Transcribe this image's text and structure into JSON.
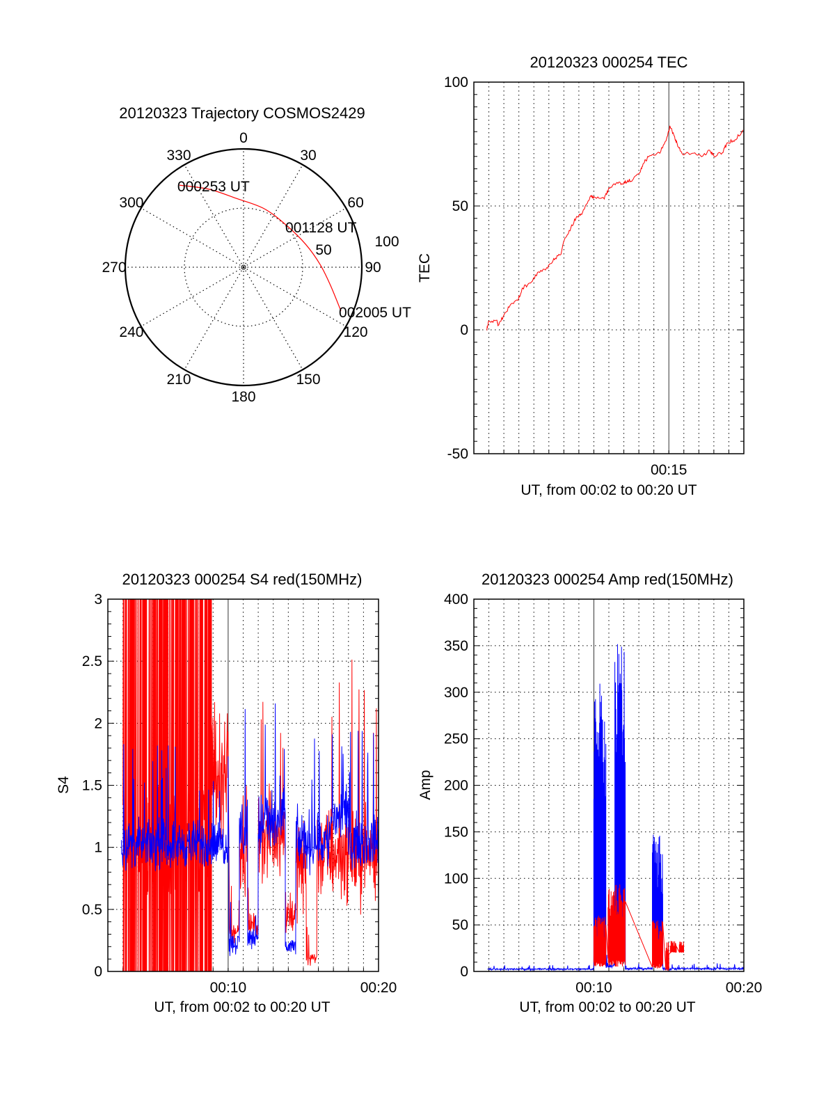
{
  "chart_data": [
    {
      "type": "polar",
      "title": "20120323 Trajectory COSMOS2429",
      "angle_labels": [
        "0",
        "30",
        "60",
        "90",
        "120",
        "150",
        "180",
        "210",
        "240",
        "270",
        "300",
        "330"
      ],
      "radial_ticks": [
        50,
        100
      ],
      "rlim": [
        0,
        100
      ],
      "trajectory": {
        "color": "#ff0000",
        "azimuth_deg": [
          322,
          336,
          354,
          19.7,
          46.9,
          70.4,
          88,
          101.8,
          114.2
        ],
        "radius": [
          88,
          72.2,
          58.5,
          52.4,
          50.8,
          56.2,
          64.8,
          75.1,
          90.3
        ]
      },
      "annotations": [
        {
          "text": "000253 UT",
          "point_index": 0
        },
        {
          "text": "001128 UT",
          "point_index": 4
        },
        {
          "text": "002005 UT",
          "point_index": 8
        }
      ]
    },
    {
      "type": "line",
      "title": "20120323 000254 TEC",
      "xlabel": "UT, from 00:02 to 00:20 UT",
      "ylabel": "TEC",
      "xlim": [
        2,
        20
      ],
      "ylim": [
        -50,
        100
      ],
      "yticks": [
        -50,
        0,
        50,
        100
      ],
      "yminor_step": 5,
      "xticks": [
        {
          "value": 15,
          "label": "00:15"
        }
      ],
      "grid": true,
      "series": [
        {
          "name": "TEC",
          "color": "#ff0000",
          "x": [
            2.85,
            3.0,
            3.54,
            3.62,
            4.0,
            4.47,
            4.93,
            5.24,
            5.78,
            6.31,
            6.93,
            7.32,
            7.78,
            8.01,
            8.47,
            8.86,
            9.24,
            9.75,
            10.0,
            10.7,
            11.0,
            11.48,
            12.0,
            12.25,
            12.56,
            13.1,
            13.33,
            13.63,
            14.4,
            14.87,
            15.07,
            15.36,
            15.56,
            15.87,
            16.56,
            17.26,
            17.72,
            18.0,
            18.57,
            18.87,
            19.41,
            19.95
          ],
          "y": [
            0,
            3.4,
            3.9,
            1.9,
            5.9,
            10.4,
            11.9,
            16.9,
            18.9,
            23.4,
            24.9,
            28.8,
            30.3,
            35.8,
            41.3,
            45.8,
            47.3,
            53.8,
            53.8,
            52.8,
            57.3,
            59.1,
            59.1,
            60.3,
            60.3,
            63.8,
            67.3,
            69.8,
            71.3,
            77.7,
            82.4,
            78.2,
            75.0,
            71.3,
            71.3,
            70.1,
            72.5,
            70.1,
            71.5,
            75.4,
            76.7,
            80.7
          ]
        }
      ]
    },
    {
      "type": "line",
      "title": "20120323 000254 S4 red(150MHz)",
      "xlabel": "UT, from 00:02 to 00:20 UT",
      "ylabel": "S4",
      "xlim": [
        2,
        20
      ],
      "ylim": [
        0,
        3
      ],
      "yticks": [
        0,
        0.5,
        1,
        1.5,
        2,
        2.5,
        3
      ],
      "yminor_step": 0.1,
      "xticks": [
        {
          "value": 10,
          "label": "00:10"
        },
        {
          "value": 20,
          "label": "00:20"
        }
      ],
      "grid": true,
      "series": [
        {
          "name": "S4 red",
          "color": "#ff0000",
          "segments": [
            {
              "t": [
                3.0,
                8.9
              ],
              "range": [
                0,
                3
              ],
              "mode": "saturated"
            },
            {
              "t": [
                8.9,
                10.0
              ],
              "range": [
                0.7,
                2.5
              ],
              "mode": "noise"
            },
            {
              "t": [
                10.1,
                10.75
              ],
              "range": [
                0.2,
                0.45
              ],
              "mode": "noise"
            },
            {
              "t": [
                10.75,
                11.3
              ],
              "range": [
                0.5,
                1.6
              ],
              "mode": "noise"
            },
            {
              "t": [
                11.3,
                12.0
              ],
              "range": [
                0.25,
                0.5
              ],
              "mode": "noise"
            },
            {
              "t": [
                12.0,
                13.8
              ],
              "range": [
                0.6,
                1.6
              ],
              "mode": "noise"
            },
            {
              "t": [
                13.8,
                14.5
              ],
              "range": [
                0.2,
                0.75
              ],
              "mode": "noise"
            },
            {
              "t": [
                14.5,
                15.2
              ],
              "range": [
                0.3,
                1.4
              ],
              "mode": "noise"
            },
            {
              "t": [
                15.2,
                15.9
              ],
              "range": [
                0.02,
                0.2
              ],
              "mode": "noise"
            },
            {
              "t": [
                15.9,
                20.0
              ],
              "range": [
                0.4,
                1.5
              ],
              "mode": "noise"
            }
          ]
        },
        {
          "name": "S4 blue",
          "color": "#0000ff",
          "segments": [
            {
              "t": [
                2.9,
                10.0
              ],
              "range": [
                0.75,
                1.3
              ],
              "mode": "noise"
            },
            {
              "t": [
                10.0,
                10.05
              ],
              "range": [
                0.2,
                3.0
              ],
              "mode": "noise"
            },
            {
              "t": [
                10.05,
                10.75
              ],
              "range": [
                0.1,
                0.35
              ],
              "mode": "noise"
            },
            {
              "t": [
                10.75,
                11.3
              ],
              "range": [
                0.7,
                1.6
              ],
              "mode": "noise"
            },
            {
              "t": [
                11.3,
                12.0
              ],
              "range": [
                0.15,
                0.4
              ],
              "mode": "noise"
            },
            {
              "t": [
                12.0,
                13.8
              ],
              "range": [
                0.8,
                1.6
              ],
              "mode": "noise"
            },
            {
              "t": [
                13.8,
                14.5
              ],
              "range": [
                0.1,
                0.3
              ],
              "mode": "noise"
            },
            {
              "t": [
                14.5,
                16.8
              ],
              "range": [
                0.7,
                1.4
              ],
              "mode": "noise"
            },
            {
              "t": [
                16.8,
                18.0
              ],
              "range": [
                0.9,
                1.6
              ],
              "mode": "noise"
            },
            {
              "t": [
                18.0,
                20.0
              ],
              "range": [
                0.75,
                1.35
              ],
              "mode": "noise"
            }
          ]
        }
      ]
    },
    {
      "type": "line",
      "title": "20120323 000254 Amp red(150MHz)",
      "xlabel": "UT, from 00:02 to 00:20 UT",
      "ylabel": "Amp",
      "xlim": [
        2,
        20
      ],
      "ylim": [
        0,
        400
      ],
      "yticks": [
        0,
        50,
        100,
        150,
        200,
        250,
        300,
        350,
        400
      ],
      "yminor_step": 10,
      "xticks": [
        {
          "value": 10,
          "label": "00:10"
        },
        {
          "value": 20,
          "label": "00:20"
        }
      ],
      "grid": true,
      "series": [
        {
          "name": "Amp blue",
          "color": "#0000ff",
          "segments": [
            {
              "t": [
                2.9,
                10.0
              ],
              "range": [
                1,
                4
              ],
              "mode": "noise"
            },
            {
              "t": [
                10.0,
                10.8
              ],
              "range": [
                10,
                310
              ],
              "mode": "burst"
            },
            {
              "t": [
                10.8,
                11.4
              ],
              "range": [
                1,
                12
              ],
              "mode": "noise"
            },
            {
              "t": [
                11.4,
                12.1
              ],
              "range": [
                15,
                355
              ],
              "mode": "burst"
            },
            {
              "t": [
                12.1,
                13.9
              ],
              "range": [
                1,
                5
              ],
              "mode": "noise"
            },
            {
              "t": [
                13.9,
                14.6
              ],
              "range": [
                5,
                150
              ],
              "mode": "burst"
            },
            {
              "t": [
                14.6,
                20.0
              ],
              "range": [
                1,
                5
              ],
              "mode": "noise"
            }
          ]
        },
        {
          "name": "Amp red",
          "color": "#ff0000",
          "segments": [
            {
              "t": [
                10.0,
                10.8
              ],
              "range": [
                5,
                60
              ],
              "mode": "burst"
            },
            {
              "t": [
                10.95,
                12.1
              ],
              "range": [
                5,
                95
              ],
              "mode": "burst"
            },
            {
              "t": [
                13.9,
                14.6
              ],
              "range": [
                3,
                55
              ],
              "mode": "burst"
            },
            {
              "t": [
                14.8,
                15.0
              ],
              "range": [
                0,
                32
              ],
              "mode": "burst"
            },
            {
              "t": [
                15.1,
                15.5
              ],
              "range": [
                20,
                33
              ],
              "mode": "burst"
            },
            {
              "t": [
                15.7,
                16.0
              ],
              "range": [
                20,
                32
              ],
              "mode": "burst"
            }
          ]
        }
      ]
    }
  ]
}
